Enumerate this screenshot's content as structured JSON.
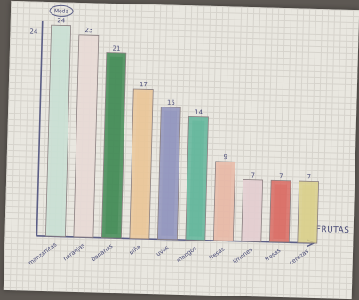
{
  "chart_data": {
    "type": "bar",
    "categories": [
      "manzanitas",
      "naranjas",
      "bananas",
      "piña",
      "uvas",
      "mangos",
      "fresas",
      "limones",
      "fresas",
      "cerezas"
    ],
    "values": [
      24,
      23,
      21,
      17,
      15,
      14,
      9,
      7,
      7,
      7
    ],
    "bar_colors": [
      "#c9dfd4",
      "#e7d9d5",
      "#3f8a54",
      "#eac598",
      "#8f93bd",
      "#5fb59a",
      "#e8b8a6",
      "#e3cdd0",
      "#d96a62",
      "#d9cf8a"
    ],
    "highlight_label": "Moda",
    "highlight_index": 0,
    "xlabel": "FRUTAS",
    "ylabel": "",
    "ylim": [
      0,
      24
    ],
    "grid": true,
    "legend": "none"
  },
  "colors": {
    "ink": "#4a4c78",
    "axis": "#5b5e86",
    "paper": "#e9e7e0"
  }
}
